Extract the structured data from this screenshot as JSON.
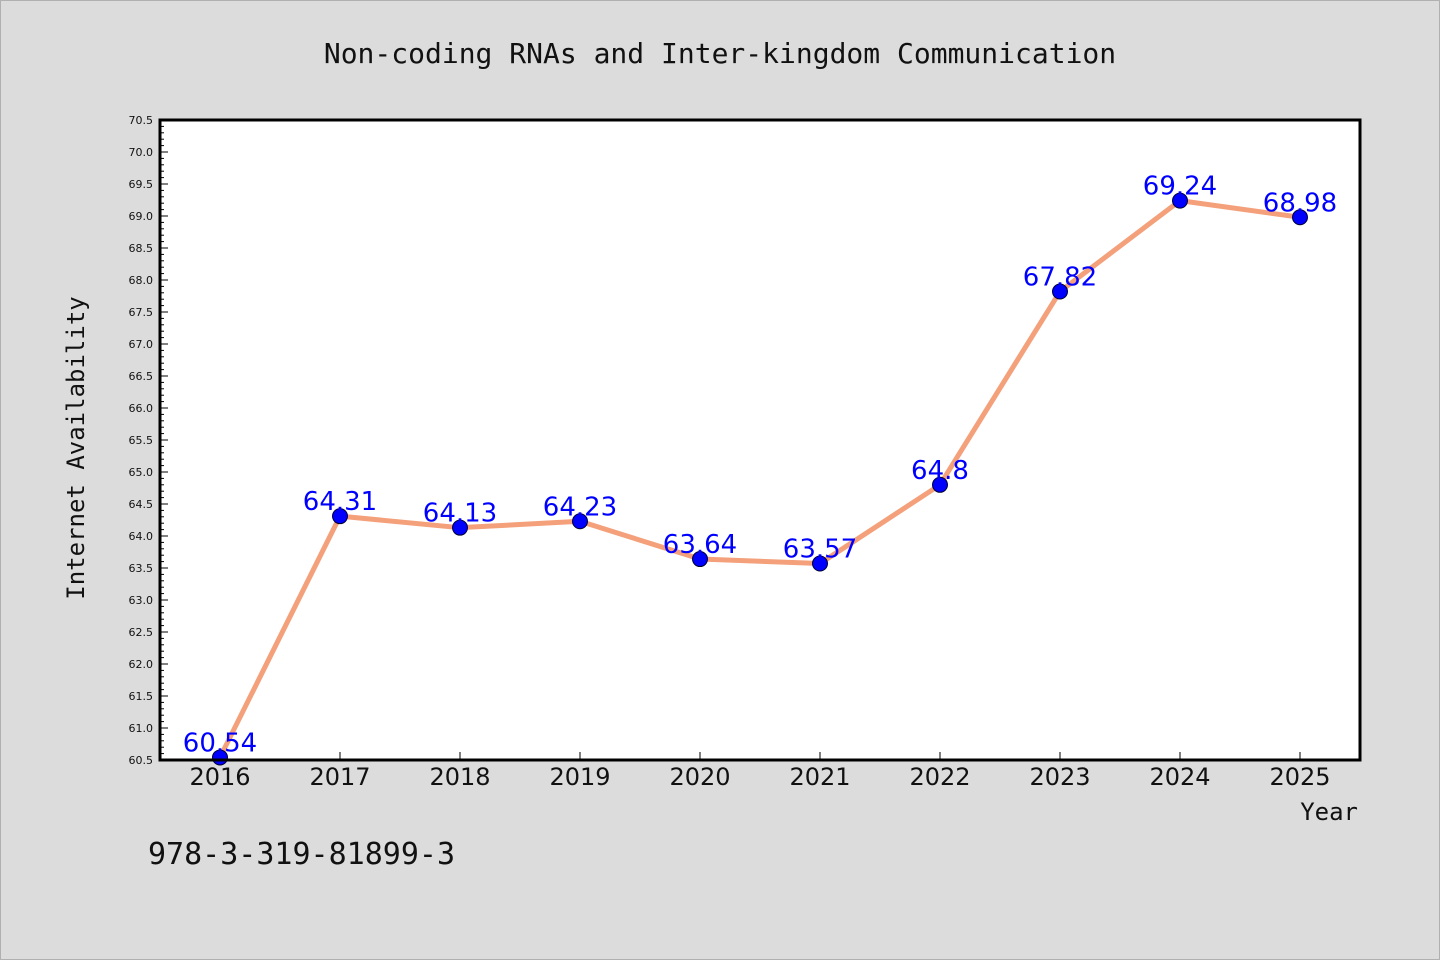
{
  "chart_data": {
    "type": "line",
    "title": "Non-coding RNAs and Inter-kingdom Communication",
    "xlabel": "Year",
    "ylabel": "Internet Availability",
    "categories": [
      "2016",
      "2017",
      "2018",
      "2019",
      "2020",
      "2021",
      "2022",
      "2023",
      "2024",
      "2025"
    ],
    "series": [
      {
        "values": [
          60.54,
          64.31,
          64.13,
          64.23,
          63.64,
          63.57,
          64.8,
          67.82,
          69.24,
          68.98
        ],
        "labels": [
          "60.54",
          "64.31",
          "64.13",
          "64.23",
          "63.64",
          "63.57",
          "64.8",
          "67.82",
          "69.24",
          "68.98"
        ]
      }
    ],
    "ylim": [
      60.5,
      70.5
    ],
    "yticks": [
      "60.5",
      "61.0",
      "61.5",
      "62.0",
      "62.5",
      "63.0",
      "63.5",
      "64.0",
      "64.5",
      "65.0",
      "65.5",
      "66.0",
      "66.5",
      "67.0",
      "67.5",
      "68.0",
      "68.5",
      "69.0",
      "69.5",
      "70.0",
      "70.5"
    ],
    "grid": false,
    "colors": {
      "line": "#f4a07a",
      "marker": "#0000ff",
      "data_label": "#0000ff",
      "background": "#dcdcdc",
      "plot_background": "#ffffff"
    }
  },
  "footer": {
    "isbn": "978-3-319-81899-3"
  }
}
